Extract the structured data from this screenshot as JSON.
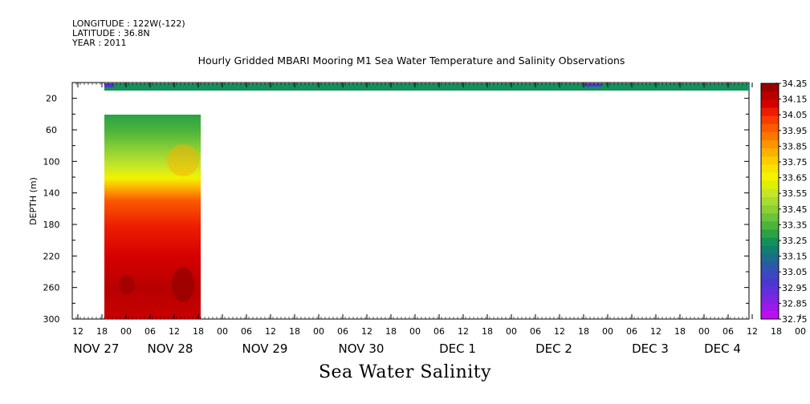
{
  "meta": {
    "longitude": "LONGITUDE : 122W(-122)",
    "latitude": "LATITUDE : 36.8N",
    "year": "YEAR : 2011"
  },
  "chart_data": {
    "type": "heatmap",
    "title": "Hourly Gridded MBARI Mooring M1 Sea Water Temperature and Salinity Observations",
    "variable_title": "Sea Water Salinity",
    "ylabel": "DEPTH (m)",
    "xlabel": "",
    "y_axis": {
      "ticks": [
        20,
        60,
        100,
        140,
        180,
        220,
        260,
        300
      ],
      "range": [
        0,
        300
      ],
      "inverted": true
    },
    "x_axis": {
      "hour_ticks": [
        "12",
        "18",
        "00",
        "06",
        "12",
        "18",
        "00",
        "06",
        "12",
        "18",
        "00",
        "06",
        "12",
        "18",
        "00",
        "06",
        "12",
        "18",
        "00",
        "06",
        "12",
        "18",
        "00",
        "06",
        "12",
        "18",
        "00",
        "06",
        "12",
        "18",
        "00",
        "06"
      ],
      "dates": [
        "NOV 27",
        "NOV 28",
        "NOV 29",
        "NOV 30",
        "DEC 1",
        "DEC 2",
        "DEC 3",
        "DEC 4"
      ]
    },
    "colorbar": {
      "levels": [
        34.25,
        34.15,
        34.05,
        33.95,
        33.85,
        33.75,
        33.65,
        33.55,
        33.45,
        33.35,
        33.25,
        33.15,
        33.05,
        32.95,
        32.85,
        32.75
      ],
      "colors": [
        "#9b0000",
        "#b80000",
        "#d40000",
        "#ec1c00",
        "#f83c00",
        "#fb5a00",
        "#fc7600",
        "#fd9400",
        "#fcb000",
        "#fbcc00",
        "#f7e300",
        "#f3f300",
        "#dcf000",
        "#c4e628",
        "#a8dc30",
        "#8cd034",
        "#6cc238",
        "#4cb43c",
        "#2ca244",
        "#14905a",
        "#10806e",
        "#1c6c8c",
        "#2c58a8",
        "#3c48c0",
        "#4c38d0",
        "#6030dc",
        "#7c24e4",
        "#9c18ec",
        "#c00cf4"
      ]
    },
    "profile_series": [
      {
        "depth": 10,
        "salinity": 33.25,
        "span": "full record"
      },
      {
        "depth": 40,
        "salinity": 33.35
      },
      {
        "depth": 70,
        "salinity": 33.5
      },
      {
        "depth": 100,
        "salinity": 33.7
      },
      {
        "depth": 120,
        "salinity": 33.85
      },
      {
        "depth": 150,
        "salinity": 33.95
      },
      {
        "depth": 200,
        "salinity": 34.05
      },
      {
        "depth": 240,
        "salinity": 34.15
      },
      {
        "depth": 280,
        "salinity": 34.2
      },
      {
        "depth": 300,
        "salinity": 34.15
      }
    ]
  }
}
